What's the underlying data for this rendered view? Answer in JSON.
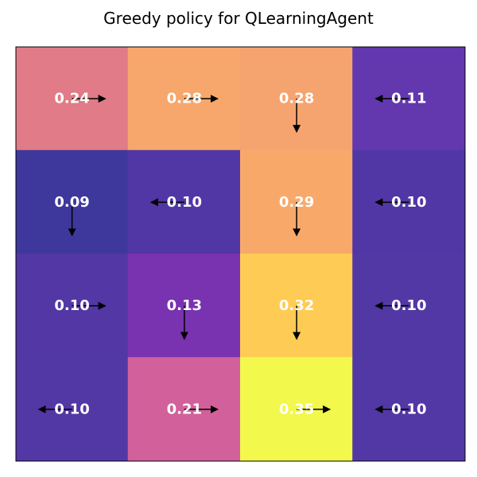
{
  "chart_data": {
    "type": "heatmap",
    "title": "Greedy policy for QLearningAgent",
    "rows": 4,
    "cols": 4,
    "values": [
      [
        0.24,
        0.28,
        0.28,
        0.11
      ],
      [
        0.09,
        0.1,
        0.29,
        0.1
      ],
      [
        0.1,
        0.13,
        0.32,
        0.1
      ],
      [
        0.1,
        0.21,
        0.35,
        0.1
      ]
    ],
    "labels": [
      [
        "0.24",
        "0.28",
        "0.28",
        "0.11"
      ],
      [
        "0.09",
        "0.10",
        "0.29",
        "0.10"
      ],
      [
        "0.10",
        "0.13",
        "0.32",
        "0.10"
      ],
      [
        "0.10",
        "0.21",
        "0.35",
        "0.10"
      ]
    ],
    "actions": [
      [
        "right",
        "right",
        "down",
        "left"
      ],
      [
        "down",
        "left",
        "down",
        "left"
      ],
      [
        "right",
        "down",
        "down",
        "left"
      ],
      [
        "left",
        "right",
        "right",
        "left"
      ]
    ],
    "colors": [
      [
        "#e17b87",
        "#f7a76b",
        "#f6a46f",
        "#6338ae"
      ],
      [
        "#3e389d",
        "#5137a5",
        "#f8a96a",
        "#5137a5"
      ],
      [
        "#5237a5",
        "#7932b0",
        "#fecb55",
        "#5238a5"
      ],
      [
        "#5238a5",
        "#d2619b",
        "#f2f84c",
        "#5238a5"
      ]
    ],
    "colormap": "plasma",
    "grid": true,
    "label_color": "#ffffff",
    "arrow_color": "#000000"
  }
}
